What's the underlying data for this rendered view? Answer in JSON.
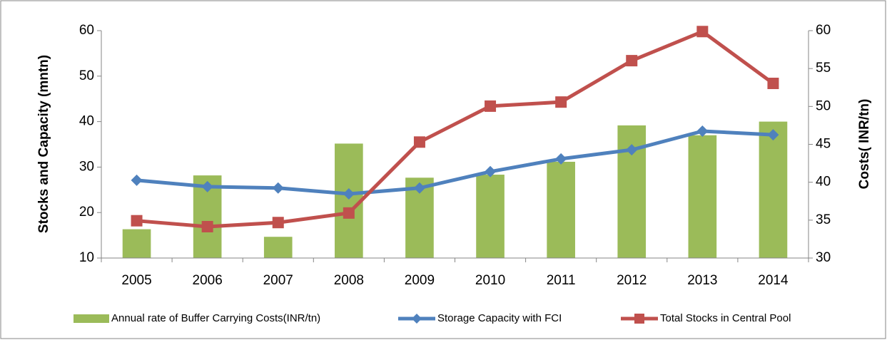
{
  "chart_data": {
    "type": "combo",
    "y_label": "Stocks and Capacity (mntn)",
    "y2_label": "Costs( INR/tn)",
    "categories": [
      "2005",
      "2006",
      "2007",
      "2008",
      "2009",
      "2010",
      "2011",
      "2012",
      "2013",
      "2014"
    ],
    "ylim": [
      10,
      60
    ],
    "yticks": [
      10,
      20,
      30,
      40,
      50,
      60
    ],
    "y2lim": [
      30,
      60
    ],
    "y2ticks": [
      30,
      35,
      40,
      45,
      50,
      55,
      60
    ],
    "legend": "bottom",
    "series": [
      {
        "name": "Annual rate of Buffer Carrying Costs(INR/tn)",
        "type": "bar",
        "axis": "y2",
        "color": "#9bbb59",
        "values": [
          33.8,
          40.9,
          32.8,
          45.1,
          40.6,
          41.0,
          42.7,
          47.5,
          46.2,
          48.0
        ]
      },
      {
        "name": "Storage Capacity with FCI",
        "type": "line",
        "marker": "diamond",
        "color": "#4f81bd",
        "values": [
          27.1,
          25.7,
          25.4,
          24.1,
          25.4,
          29.0,
          31.8,
          33.8,
          37.9,
          37.1
        ]
      },
      {
        "name": "Total Stocks in Central Pool",
        "type": "line",
        "marker": "square",
        "color": "#c0504d",
        "values": [
          18.2,
          16.9,
          17.8,
          19.9,
          35.5,
          43.4,
          44.3,
          53.4,
          59.8,
          48.4
        ]
      }
    ]
  }
}
